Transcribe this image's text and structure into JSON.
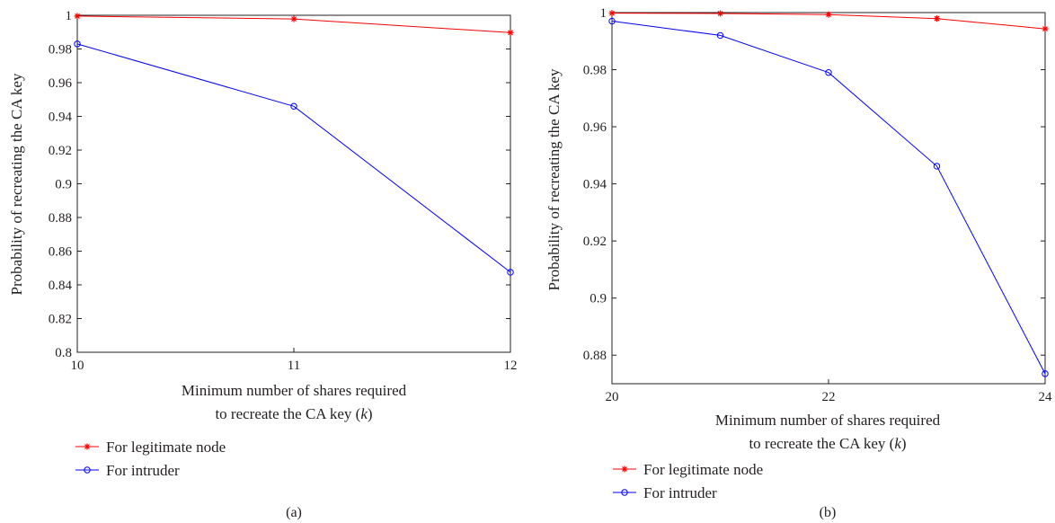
{
  "chart_data": [
    {
      "type": "line",
      "panel_label": "(a)",
      "xlabel_line1": "Minimum number of shares required",
      "xlabel_line2_prefix": "to recreate the CA key (",
      "xlabel_line2_var": "k",
      "xlabel_line2_suffix": ")",
      "ylabel": "Probability of recreating the CA key",
      "xlim": [
        10,
        12
      ],
      "ylim": [
        0.8,
        1.0
      ],
      "xticks": [
        "10",
        "11",
        "12"
      ],
      "yticks": [
        "0.8",
        "0.82",
        "0.84",
        "0.86",
        "0.88",
        "0.9",
        "0.92",
        "0.94",
        "0.96",
        "0.98",
        "1"
      ],
      "x": [
        10,
        11,
        12
      ],
      "series": [
        {
          "name": "For legitimate node",
          "marker": "star",
          "color": "#ff0000",
          "values": [
            0.9995,
            0.9978,
            0.9897
          ]
        },
        {
          "name": "For intruder",
          "marker": "circle",
          "color": "#0000ff",
          "values": [
            0.983,
            0.946,
            0.8475
          ]
        }
      ],
      "legend_position": "below"
    },
    {
      "type": "line",
      "panel_label": "(b)",
      "xlabel_line1": "Minimum number of shares required",
      "xlabel_line2_prefix": "to recreate the CA key (",
      "xlabel_line2_var": "k",
      "xlabel_line2_suffix": ")",
      "ylabel": "Probability of recreating the CA key",
      "xlim": [
        20,
        24
      ],
      "ylim": [
        0.87,
        1.0
      ],
      "xticks": [
        "20",
        "22",
        "24"
      ],
      "yticks": [
        "0.88",
        "0.9",
        "0.92",
        "0.94",
        "0.96",
        "0.98",
        "1"
      ],
      "x": [
        20,
        21,
        22,
        23,
        24
      ],
      "series": [
        {
          "name": "For legitimate node",
          "marker": "star",
          "color": "#ff0000",
          "values": [
            0.9998,
            0.9997,
            0.9993,
            0.9979,
            0.9943
          ]
        },
        {
          "name": "For intruder",
          "marker": "circle",
          "color": "#0000ff",
          "values": [
            0.997,
            0.992,
            0.979,
            0.9462,
            0.8735
          ]
        }
      ],
      "legend_position": "below"
    }
  ]
}
